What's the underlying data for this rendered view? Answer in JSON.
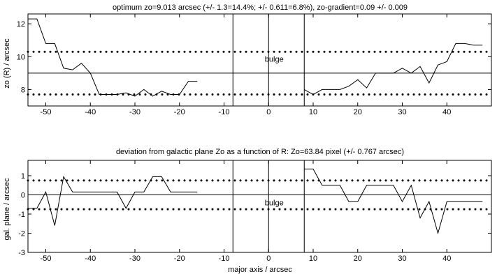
{
  "xlabel": "major axis  /  arcsec",
  "chart_data": [
    {
      "type": "line",
      "title": "optimum zo=9.013 arcsec (+/- 1.3=14.4%; +/- 0.611=6.8%),  zo-gradient=0.09 +/- 0.009",
      "xlabel": "",
      "ylabel": "zo (R)  /  arcsec",
      "xlim": [
        -54,
        50
      ],
      "ylim": [
        7,
        12.6
      ],
      "xticks": [
        -50,
        -40,
        -30,
        -20,
        -10,
        0,
        10,
        20,
        30,
        40
      ],
      "yticks": [
        8,
        10,
        12
      ],
      "grid": false,
      "annotation": "bulge",
      "annotation_pos": [
        0,
        9.7
      ],
      "reference_lines": {
        "dotted": [
          7.7,
          10.3
        ],
        "solid": [
          9.0
        ],
        "vertical": [
          -8,
          0,
          8
        ]
      },
      "series": [
        {
          "x": [
            -54,
            -52,
            -50,
            -48,
            -46,
            -44,
            -42,
            -40,
            -38,
            -36,
            -34,
            -32,
            -30,
            -28,
            -26,
            -24,
            -22,
            -20,
            -18,
            -16
          ],
          "y": [
            12.3,
            12.3,
            10.8,
            10.8,
            9.3,
            9.2,
            9.6,
            9.0,
            7.7,
            7.7,
            7.7,
            7.8,
            7.6,
            8.0,
            7.6,
            7.9,
            7.7,
            7.7,
            8.5,
            8.5
          ]
        },
        {
          "x": [
            8,
            10,
            12,
            14,
            16,
            18,
            20,
            22,
            24,
            26,
            28,
            30,
            32,
            34,
            36,
            38,
            40,
            42,
            44,
            46,
            48
          ],
          "y": [
            8.0,
            7.7,
            8.0,
            8.0,
            8.0,
            8.2,
            8.6,
            8.1,
            9.0,
            9.0,
            9.0,
            9.3,
            9.0,
            9.4,
            8.4,
            9.5,
            9.7,
            10.8,
            10.8,
            10.7,
            10.7
          ]
        }
      ]
    },
    {
      "type": "line",
      "title": "deviation from galactic plane Zo as a function of R:  Zo=63.84 pixel (+/- 0.767 arcsec)",
      "xlabel": "major axis  /  arcsec",
      "ylabel": "gal. plane  /  arcsec",
      "xlim": [
        -54,
        50
      ],
      "ylim": [
        -3,
        1.8
      ],
      "xticks": [
        -50,
        -40,
        -30,
        -20,
        -10,
        0,
        10,
        20,
        30,
        40
      ],
      "yticks": [
        -3,
        -2,
        -1,
        0,
        1
      ],
      "grid": false,
      "annotation": "bulge",
      "annotation_pos": [
        0,
        -0.55
      ],
      "reference_lines": {
        "dotted": [
          0.75,
          -0.75
        ],
        "solid": [
          0
        ],
        "vertical": [
          -8,
          0,
          8
        ]
      },
      "series": [
        {
          "x": [
            -54,
            -52,
            -50,
            -48,
            -46,
            -44,
            -42,
            -40,
            -38,
            -36,
            -34,
            -32,
            -30,
            -28,
            -26,
            -24,
            -22,
            -20,
            -18,
            -16
          ],
          "y": [
            -0.7,
            -0.7,
            0.15,
            -1.6,
            0.95,
            0.15,
            0.15,
            0.15,
            0.15,
            0.15,
            0.15,
            -0.7,
            0.15,
            0.15,
            0.95,
            0.95,
            0.15,
            0.15,
            0.15,
            0.15
          ]
        },
        {
          "x": [
            8,
            10,
            12,
            14,
            16,
            18,
            20,
            22,
            24,
            26,
            28,
            30,
            32,
            34,
            36,
            38,
            40,
            42,
            44,
            46,
            48
          ],
          "y": [
            1.35,
            1.35,
            0.5,
            0.5,
            0.5,
            -0.35,
            -0.35,
            0.5,
            0.5,
            0.5,
            0.5,
            -0.35,
            0.5,
            -1.2,
            -0.35,
            -2.0,
            -0.35,
            -0.35,
            -0.35,
            -0.35,
            -0.35
          ]
        }
      ]
    }
  ]
}
